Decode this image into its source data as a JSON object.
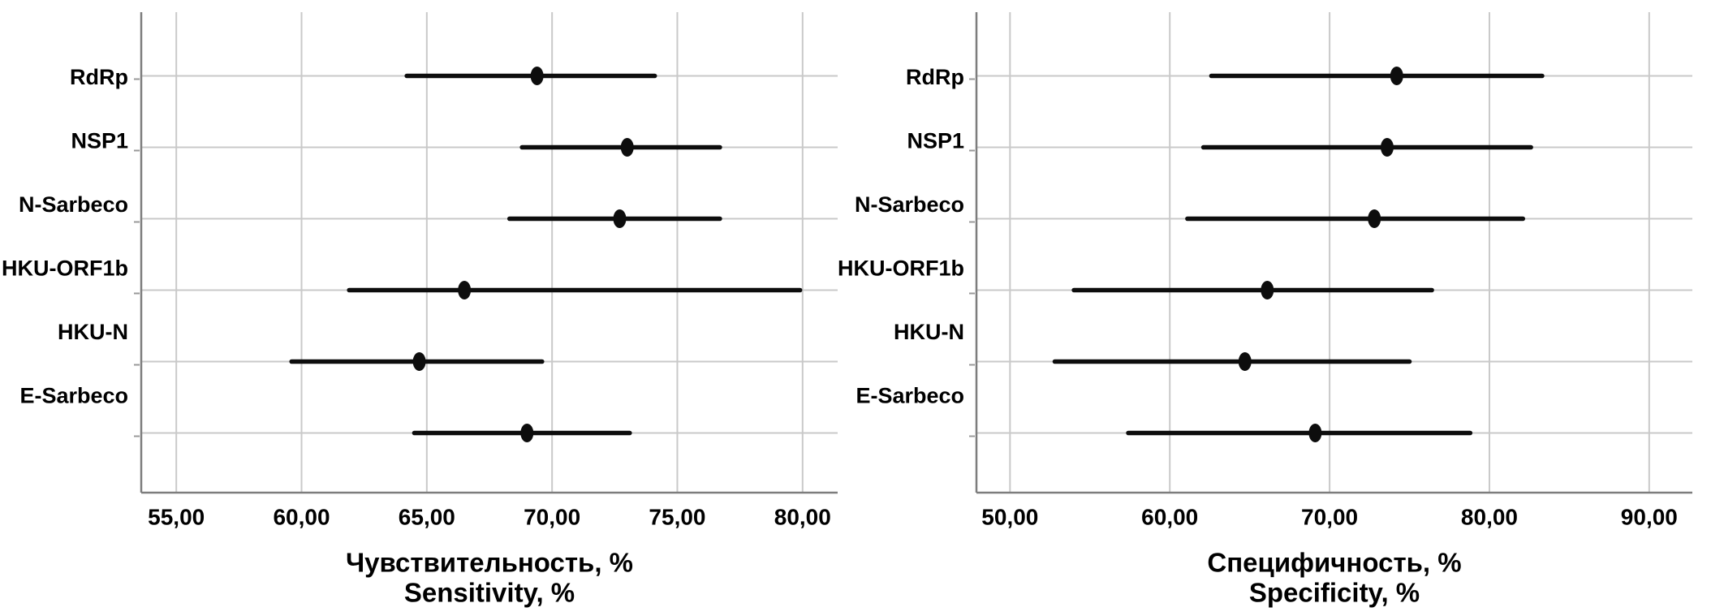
{
  "figure": {
    "background": "#ffffff",
    "text_color": "#000000",
    "gridline_color": "#c9c9c9",
    "axis_color": "#7d7d7d",
    "tick_color": "#999999",
    "bar_color": "#0d0d0d"
  },
  "chart_data": [
    {
      "type": "scatter",
      "subtype": "horizontal-error-bar-forest",
      "name": "sensitivity",
      "title_ru": "Чувствительность, %",
      "title_en": "Sensitivity, %",
      "legend": "none",
      "grid": true,
      "xlim": [
        53.6,
        81.4
      ],
      "xticks": [
        55,
        60,
        65,
        70,
        75,
        80
      ],
      "xtick_labels": [
        "55,00",
        "60,00",
        "65,00",
        "70,00",
        "75,00",
        "80,00"
      ],
      "categories": [
        "RdRp",
        "NSP1",
        "N-Sarbeco",
        "HKU-ORF1b",
        "HKU-N",
        "E-Sarbeco"
      ],
      "points": [
        {
          "category": "RdRp",
          "value": 69.4,
          "lo": 64.2,
          "hi": 74.1
        },
        {
          "category": "NSP1",
          "value": 73.0,
          "lo": 68.8,
          "hi": 76.7
        },
        {
          "category": "N-Sarbeco",
          "value": 72.7,
          "lo": 68.3,
          "hi": 76.7
        },
        {
          "category": "HKU-ORF1b",
          "value": 66.5,
          "lo": 61.9,
          "hi": 79.9
        },
        {
          "category": "HKU-N",
          "value": 64.7,
          "lo": 59.6,
          "hi": 69.6
        },
        {
          "category": "E-Sarbeco",
          "value": 69.0,
          "lo": 64.5,
          "hi": 73.1
        }
      ]
    },
    {
      "type": "scatter",
      "subtype": "horizontal-error-bar-forest",
      "name": "specificity",
      "title_ru": "Специфичность, %",
      "title_en": "Specificity, %",
      "legend": "none",
      "grid": true,
      "xlim": [
        47.9,
        92.7
      ],
      "xticks": [
        50,
        60,
        70,
        80,
        90
      ],
      "xtick_labels": [
        "50,00",
        "60,00",
        "70,00",
        "80,00",
        "90,00"
      ],
      "categories": [
        "RdRp",
        "NSP1",
        "N-Sarbeco",
        "HKU-ORF1b",
        "HKU-N",
        "E-Sarbeco"
      ],
      "points": [
        {
          "category": "RdRp",
          "value": 74.2,
          "lo": 62.6,
          "hi": 83.3
        },
        {
          "category": "NSP1",
          "value": 73.6,
          "lo": 62.1,
          "hi": 82.6
        },
        {
          "category": "N-Sarbeco",
          "value": 72.8,
          "lo": 61.1,
          "hi": 82.1
        },
        {
          "category": "HKU-ORF1b",
          "value": 66.1,
          "lo": 54.0,
          "hi": 76.4
        },
        {
          "category": "HKU-N",
          "value": 64.7,
          "lo": 52.8,
          "hi": 75.0
        },
        {
          "category": "E-Sarbeco",
          "value": 69.1,
          "lo": 57.4,
          "hi": 78.8
        }
      ]
    }
  ]
}
